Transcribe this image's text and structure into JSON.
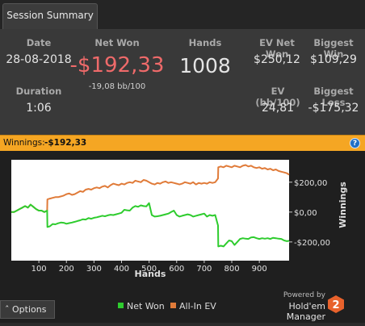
{
  "tab": {
    "label": "Session Summary"
  },
  "summary": {
    "date_label": "Date",
    "date_value": "28-08-2018",
    "duration_label": "Duration",
    "duration_value": "1:06",
    "netwon_label": "Net Won",
    "netwon_value": "-$192,33",
    "netwon_sub": "-19,08 bb/100",
    "hands_label": "Hands",
    "hands_value": "1008",
    "ev_netwon_label": "EV Net Won",
    "ev_netwon_value": "$250,12",
    "ev_bb_label": "EV (bb/100)",
    "ev_bb_value": "24,81",
    "biggest_win_label": "Biggest Win",
    "biggest_win_value": "$109,29",
    "biggest_loss_label": "Biggest Loss",
    "biggest_loss_value": "-$175,32"
  },
  "winnings": {
    "label": "Winnings:",
    "value": "-$192,33",
    "help_icon": "help-icon"
  },
  "colors": {
    "net_won": "#2ecc2e",
    "all_in_ev": "#e07b39",
    "winbar": "#f5a623",
    "netwon_red": "#ef6a6a",
    "zero_line": "#ffffff"
  },
  "chart_data": {
    "type": "line",
    "xlabel": "Hands",
    "ylabel": "Winnings",
    "xlim": [
      0,
      1008
    ],
    "ylim": [
      -325,
      350
    ],
    "x_ticks": [
      100,
      200,
      300,
      400,
      500,
      600,
      700,
      800,
      900
    ],
    "x_tick_labels": [
      "100",
      "200",
      "300",
      "400",
      "500",
      "600",
      "700",
      "800",
      "900"
    ],
    "y_ticks": [
      200,
      0,
      -200
    ],
    "y_tick_labels": [
      "$200,00",
      "$0,00",
      "-$200,00"
    ],
    "series": [
      {
        "name": "Net Won",
        "color": "#2ecc2e",
        "x": [
          0,
          10,
          20,
          30,
          40,
          50,
          60,
          70,
          80,
          90,
          100,
          110,
          120,
          130,
          131,
          140,
          150,
          160,
          170,
          180,
          190,
          200,
          210,
          220,
          230,
          240,
          250,
          260,
          270,
          280,
          290,
          300,
          310,
          320,
          330,
          340,
          350,
          360,
          370,
          380,
          390,
          400,
          410,
          420,
          430,
          440,
          450,
          460,
          470,
          480,
          490,
          500,
          510,
          520,
          530,
          540,
          550,
          560,
          570,
          580,
          590,
          600,
          610,
          620,
          630,
          640,
          650,
          660,
          670,
          680,
          690,
          700,
          710,
          720,
          730,
          740,
          750,
          751,
          760,
          770,
          780,
          790,
          800,
          810,
          820,
          830,
          840,
          850,
          860,
          870,
          880,
          890,
          900,
          910,
          920,
          930,
          940,
          950,
          960,
          970,
          980,
          990,
          1000,
          1008
        ],
        "y": [
          0,
          0,
          10,
          20,
          30,
          40,
          30,
          50,
          35,
          20,
          10,
          10,
          0,
          10,
          -100,
          -95,
          -80,
          -82,
          -75,
          -70,
          -72,
          -78,
          -74,
          -70,
          -65,
          -60,
          -55,
          -48,
          -50,
          -40,
          -45,
          -38,
          -35,
          -30,
          -25,
          -28,
          -22,
          -18,
          -20,
          -15,
          -10,
          -5,
          15,
          12,
          10,
          30,
          40,
          35,
          45,
          40,
          38,
          60,
          -20,
          -30,
          -28,
          -25,
          -20,
          -15,
          -10,
          0,
          10,
          -20,
          -30,
          -25,
          -20,
          -15,
          -20,
          -30,
          -25,
          -20,
          -15,
          -10,
          -30,
          -20,
          -25,
          -20,
          -90,
          -230,
          -225,
          -230,
          -210,
          -190,
          -195,
          -220,
          -200,
          -180,
          -175,
          -178,
          -180,
          -170,
          -168,
          -175,
          -180,
          -175,
          -178,
          -175,
          -180,
          -172,
          -175,
          -178,
          -180,
          -190,
          -195,
          -192.33
        ]
      },
      {
        "name": "All-In EV",
        "color": "#e07b39",
        "x": [
          0,
          10,
          20,
          30,
          40,
          50,
          60,
          70,
          80,
          90,
          100,
          110,
          120,
          130,
          131,
          140,
          150,
          160,
          170,
          180,
          190,
          200,
          210,
          220,
          230,
          240,
          250,
          260,
          270,
          280,
          290,
          300,
          310,
          320,
          330,
          340,
          350,
          360,
          370,
          380,
          390,
          400,
          410,
          420,
          430,
          440,
          450,
          460,
          470,
          480,
          490,
          500,
          510,
          520,
          530,
          540,
          550,
          560,
          570,
          580,
          590,
          600,
          610,
          620,
          630,
          640,
          650,
          660,
          670,
          680,
          690,
          700,
          710,
          720,
          730,
          740,
          750,
          751,
          760,
          770,
          780,
          790,
          800,
          810,
          820,
          830,
          840,
          850,
          860,
          870,
          880,
          890,
          900,
          910,
          920,
          930,
          940,
          950,
          960,
          970,
          980,
          990,
          1000,
          1008
        ],
        "y": [
          0,
          0,
          10,
          20,
          30,
          40,
          30,
          50,
          35,
          20,
          10,
          10,
          0,
          10,
          85,
          90,
          95,
          100,
          100,
          105,
          110,
          120,
          125,
          115,
          120,
          130,
          140,
          135,
          150,
          155,
          150,
          160,
          165,
          160,
          170,
          175,
          165,
          180,
          190,
          185,
          180,
          190,
          185,
          195,
          200,
          195,
          210,
          205,
          200,
          215,
          210,
          200,
          190,
          185,
          195,
          190,
          200,
          205,
          195,
          200,
          195,
          190,
          185,
          190,
          200,
          195,
          190,
          200,
          185,
          195,
          190,
          195,
          190,
          200,
          195,
          200,
          225,
          300,
          305,
          300,
          310,
          305,
          300,
          310,
          305,
          300,
          310,
          315,
          305,
          310,
          300,
          295,
          300,
          290,
          295,
          285,
          290,
          280,
          285,
          275,
          270,
          265,
          260,
          250.12
        ]
      }
    ]
  },
  "footer": {
    "options_label": "Options",
    "legend_net_won": "Net Won",
    "legend_all_in_ev": "All-In EV",
    "powered_by": "Powered by",
    "brand": "Hold'em Manager",
    "brand_logo": "hm2-logo"
  }
}
